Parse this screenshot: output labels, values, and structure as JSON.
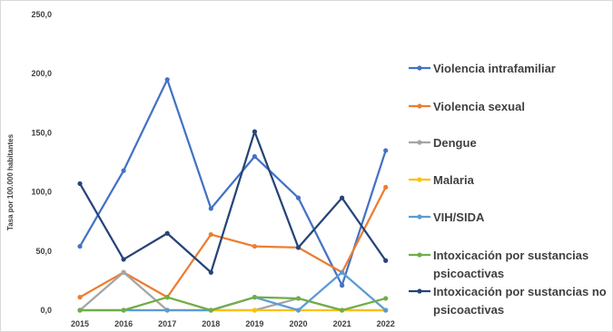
{
  "chart_data": {
    "type": "line",
    "title": "",
    "xlabel": "",
    "ylabel": "Tasa por 100.000 habitantes",
    "ylim": [
      0,
      250
    ],
    "y_ticks": [
      "0,0",
      "50,0",
      "100,0",
      "150,0",
      "200,0",
      "250,0"
    ],
    "y_tick_values": [
      0,
      50,
      100,
      150,
      200,
      250
    ],
    "categories": [
      "2015",
      "2016",
      "2017",
      "2018",
      "2019",
      "2020",
      "2021",
      "2022"
    ],
    "grid": false,
    "legend_position": "right",
    "series": [
      {
        "name": "Violencia intrafamiliar",
        "color": "#4472c4",
        "values": [
          54,
          118,
          195,
          86,
          130,
          95,
          21,
          135
        ]
      },
      {
        "name": "Violencia sexual",
        "color": "#ed7d31",
        "values": [
          11,
          32,
          11,
          64,
          54,
          53,
          32,
          104
        ]
      },
      {
        "name": "Dengue",
        "color": "#a5a5a5",
        "values": [
          0,
          32,
          0,
          0,
          0,
          10,
          0,
          0
        ]
      },
      {
        "name": "Malaria",
        "color": "#ffc000",
        "values": [
          0,
          0,
          0,
          0,
          0,
          0,
          0,
          0
        ]
      },
      {
        "name": "VIH/SIDA",
        "color": "#5b9bd5",
        "values": [
          0,
          0,
          0,
          0,
          11,
          0,
          32,
          0
        ]
      },
      {
        "name": "Intoxicación por sustancias psicoactivas",
        "color": "#70ad47",
        "values": [
          0,
          0,
          11,
          0,
          11,
          10,
          0,
          10
        ]
      },
      {
        "name": "Intoxicación por sustancias no psicoactivas",
        "color": "#264478",
        "values": [
          107,
          43,
          65,
          32,
          151,
          53,
          95,
          42
        ]
      }
    ]
  }
}
